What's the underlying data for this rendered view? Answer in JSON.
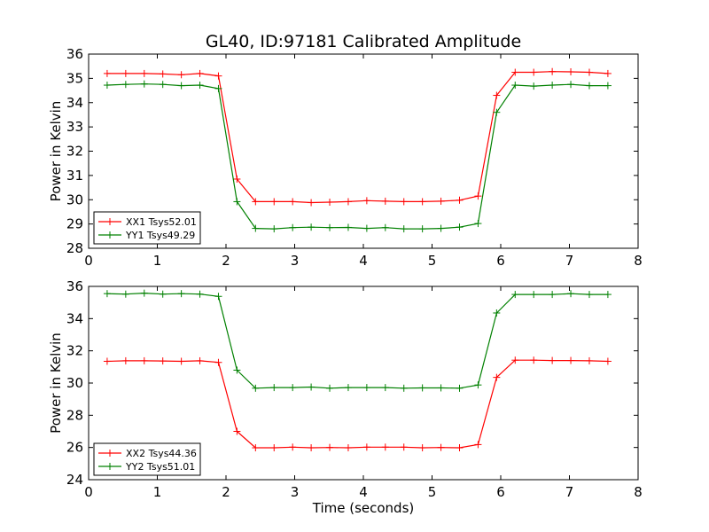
{
  "title": "GL40, ID:97181 Calibrated Amplitude",
  "xlabel": "Time (seconds)",
  "chart_data": [
    {
      "type": "line",
      "xlim": [
        0,
        8
      ],
      "ylim": [
        28,
        36
      ],
      "xticks": [
        "0",
        "1",
        "2",
        "3",
        "4",
        "5",
        "6",
        "7",
        "8"
      ],
      "yticks": [
        "28",
        "29",
        "30",
        "31",
        "32",
        "33",
        "34",
        "35",
        "36"
      ],
      "ylabel": "Power in Kelvin",
      "xlabel": "",
      "legend_position": "lower-left",
      "x": [
        0.27,
        0.54,
        0.81,
        1.08,
        1.35,
        1.62,
        1.89,
        2.16,
        2.43,
        2.7,
        2.97,
        3.24,
        3.51,
        3.78,
        4.05,
        4.32,
        4.59,
        4.86,
        5.13,
        5.4,
        5.67,
        5.94,
        6.21,
        6.48,
        6.75,
        7.02,
        7.29,
        7.56
      ],
      "series": [
        {
          "name": "XX1 Tsys52.01",
          "color": "#ff0000",
          "values": [
            35.2,
            35.2,
            35.2,
            35.18,
            35.15,
            35.2,
            35.1,
            30.85,
            29.92,
            29.92,
            29.92,
            29.88,
            29.9,
            29.92,
            29.96,
            29.94,
            29.92,
            29.92,
            29.94,
            29.98,
            30.15,
            34.3,
            35.25,
            35.25,
            35.28,
            35.27,
            35.25,
            35.2
          ]
        },
        {
          "name": "YY1 Tsys49.29",
          "color": "#008000",
          "values": [
            34.72,
            34.75,
            34.77,
            34.75,
            34.7,
            34.72,
            34.58,
            29.92,
            28.82,
            28.8,
            28.85,
            28.87,
            28.85,
            28.86,
            28.82,
            28.85,
            28.8,
            28.8,
            28.82,
            28.87,
            29.02,
            33.6,
            34.72,
            34.68,
            34.72,
            34.75,
            34.7,
            34.7
          ]
        }
      ]
    },
    {
      "type": "line",
      "xlim": [
        0,
        8
      ],
      "ylim": [
        24,
        36
      ],
      "xticks": [
        "0",
        "1",
        "2",
        "3",
        "4",
        "5",
        "6",
        "7",
        "8"
      ],
      "yticks": [
        "24",
        "26",
        "28",
        "30",
        "32",
        "34",
        "36"
      ],
      "ylabel": "Power in Kelvin",
      "xlabel": "Time (seconds)",
      "legend_position": "lower-left",
      "x": [
        0.27,
        0.54,
        0.81,
        1.08,
        1.35,
        1.62,
        1.89,
        2.16,
        2.43,
        2.7,
        2.97,
        3.24,
        3.51,
        3.78,
        4.05,
        4.32,
        4.59,
        4.86,
        5.13,
        5.4,
        5.67,
        5.94,
        6.21,
        6.48,
        6.75,
        7.02,
        7.29,
        7.56
      ],
      "series": [
        {
          "name": "XX2 Tsys44.36",
          "color": "#ff0000",
          "values": [
            31.35,
            31.38,
            31.38,
            31.37,
            31.35,
            31.38,
            31.28,
            27.0,
            25.98,
            25.98,
            26.02,
            25.98,
            26.0,
            25.98,
            26.02,
            26.02,
            26.02,
            25.98,
            26.0,
            25.98,
            26.18,
            30.35,
            31.42,
            31.42,
            31.4,
            31.4,
            31.38,
            31.35
          ]
        },
        {
          "name": "YY2 Tsys51.01",
          "color": "#008000",
          "values": [
            35.55,
            35.52,
            35.58,
            35.52,
            35.55,
            35.52,
            35.38,
            30.8,
            29.68,
            29.72,
            29.72,
            29.75,
            29.68,
            29.72,
            29.72,
            29.72,
            29.68,
            29.7,
            29.7,
            29.68,
            29.88,
            34.35,
            35.5,
            35.5,
            35.5,
            35.55,
            35.5,
            35.5
          ]
        }
      ]
    }
  ]
}
